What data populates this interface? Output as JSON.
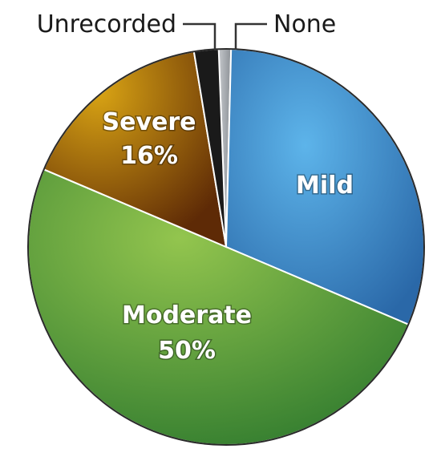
{
  "chart_data": {
    "type": "pie",
    "slices": [
      {
        "name": "None",
        "value": 1,
        "color": "#a4a9ae",
        "label_text": "None",
        "pct_text": ""
      },
      {
        "name": "Mild",
        "value": 31,
        "color": "#3e8fcb",
        "label_text": "Mild",
        "pct_text": ""
      },
      {
        "name": "Moderate",
        "value": 50,
        "color": "#5f9c3a",
        "label_text": "Moderate",
        "pct_text": "50%"
      },
      {
        "name": "Severe",
        "value": 16,
        "color": "#a86a0d",
        "label_text": "Severe",
        "pct_text": "16%"
      },
      {
        "name": "Unrecorded",
        "value": 2,
        "color": "#1a1a1a",
        "label_text": "Unrecorded",
        "pct_text": ""
      }
    ],
    "start_angle_deg": 90,
    "direction": "clockwise",
    "title": "",
    "legend": "none"
  }
}
